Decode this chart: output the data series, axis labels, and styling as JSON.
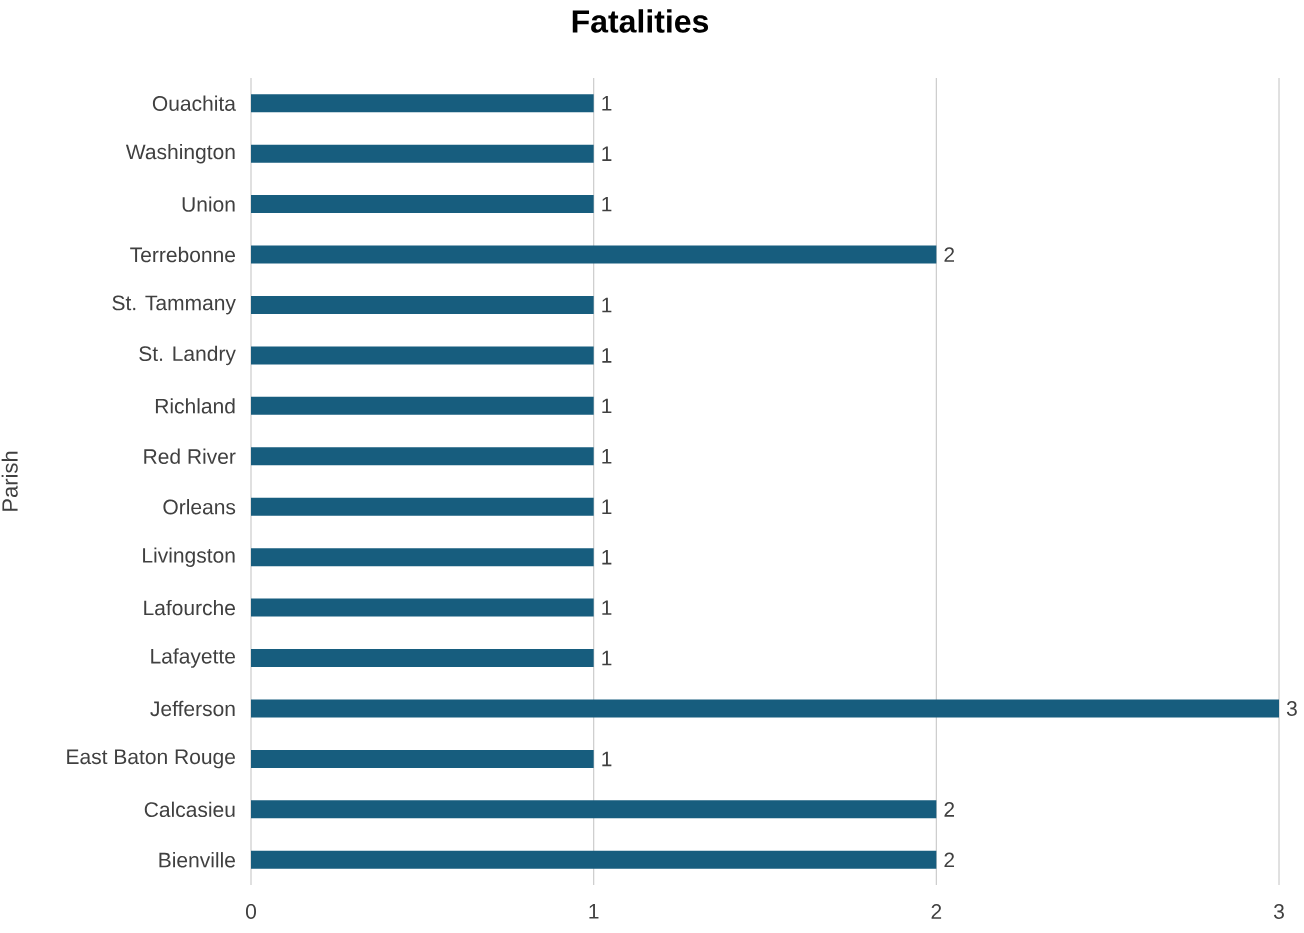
{
  "chart_data": {
    "type": "bar",
    "orientation": "horizontal",
    "title": "Fatalities",
    "ylabel": "Parish",
    "categories": [
      "Ouachita",
      "Washington",
      "Union",
      "Terrebonne",
      "St. Tammany",
      "St. Landry",
      "Richland",
      "Red River",
      "Orleans",
      "Livingston",
      "Lafourche",
      "Lafayette",
      "Jefferson",
      "East Baton Rouge",
      "Calcasieu",
      "Bienville"
    ],
    "values": [
      1,
      1,
      1,
      2,
      1,
      1,
      1,
      1,
      1,
      1,
      1,
      1,
      3,
      1,
      2,
      2
    ],
    "color": "#175d7e",
    "xlim": [
      0,
      3
    ],
    "xticks": [
      0,
      1,
      2,
      3
    ],
    "grid": "x",
    "data_labels": true
  }
}
